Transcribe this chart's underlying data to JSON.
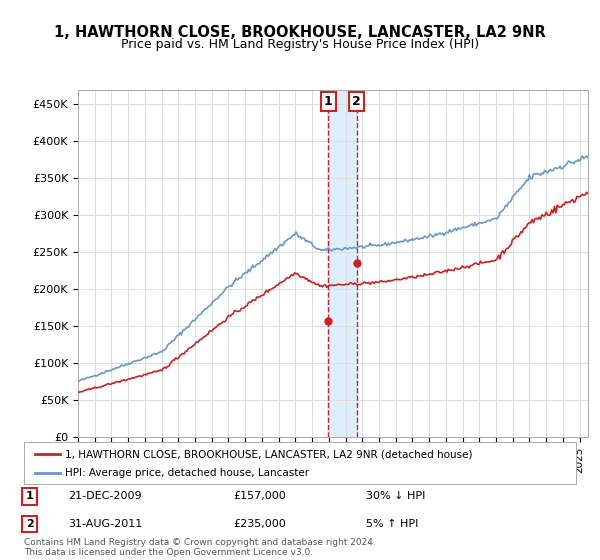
{
  "title": "1, HAWTHORN CLOSE, BROOKHOUSE, LANCASTER, LA2 9NR",
  "subtitle": "Price paid vs. HM Land Registry's House Price Index (HPI)",
  "ylabel_ticks": [
    "£0",
    "£50K",
    "£100K",
    "£150K",
    "£200K",
    "£250K",
    "£300K",
    "£350K",
    "£400K",
    "£450K"
  ],
  "ytick_values": [
    0,
    50000,
    100000,
    150000,
    200000,
    250000,
    300000,
    350000,
    400000,
    450000
  ],
  "ylim": [
    0,
    470000
  ],
  "xlim_start": 1995.0,
  "xlim_end": 2025.5,
  "sale1_date": 2009.97,
  "sale1_price": 157000,
  "sale1_label": "1",
  "sale1_text": "21-DEC-2009    £157,000    30% ↓ HPI",
  "sale2_date": 2011.67,
  "sale2_price": 235000,
  "sale2_label": "2",
  "sale2_text": "31-AUG-2011    £235,000    5% ↑ HPI",
  "hpi_color": "#6699cc",
  "price_color": "#cc2222",
  "shade_color": "#ddeeff",
  "legend_label1": "1, HAWTHORN CLOSE, BROOKHOUSE, LANCASTER, LA2 9NR (detached house)",
  "legend_label2": "HPI: Average price, detached house, Lancaster",
  "footer": "Contains HM Land Registry data © Crown copyright and database right 2024.\nThis data is licensed under the Open Government Licence v3.0.",
  "bg_color": "#ffffff",
  "grid_color": "#dddddd"
}
